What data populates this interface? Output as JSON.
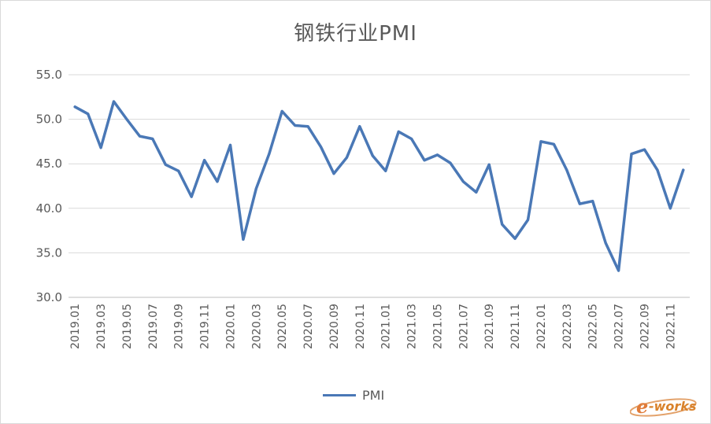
{
  "chart_data": {
    "type": "line",
    "title": "钢铁行业PMI",
    "xlabel": "",
    "ylabel": "",
    "ylim": [
      30,
      55
    ],
    "yticks": [
      "30.0",
      "35.0",
      "40.0",
      "45.0",
      "50.0",
      "55.0"
    ],
    "x": [
      "2019.01",
      "2019.02",
      "2019.03",
      "2019.04",
      "2019.05",
      "2019.06",
      "2019.07",
      "2019.08",
      "2019.09",
      "2019.10",
      "2019.11",
      "2019.12",
      "2020.01",
      "2020.02",
      "2020.03",
      "2020.04",
      "2020.05",
      "2020.06",
      "2020.07",
      "2020.08",
      "2020.09",
      "2020.10",
      "2020.11",
      "2020.12",
      "2021.01",
      "2021.02",
      "2021.03",
      "2021.04",
      "2021.05",
      "2021.06",
      "2021.07",
      "2021.08",
      "2021.09",
      "2021.10",
      "2021.11",
      "2021.12",
      "2022.01",
      "2022.02",
      "2022.03",
      "2022.04",
      "2022.05",
      "2022.06",
      "2022.07",
      "2022.08",
      "2022.09",
      "2022.10",
      "2022.11",
      "2022.12"
    ],
    "xtick_labels": [
      "2019.01",
      "2019.03",
      "2019.05",
      "2019.07",
      "2019.09",
      "2019.11",
      "2020.01",
      "2020.03",
      "2020.05",
      "2020.07",
      "2020.09",
      "2020.11",
      "2021.01",
      "2021.03",
      "2021.05",
      "2021.07",
      "2021.09",
      "2021.11",
      "2022.01",
      "2022.03",
      "2022.05",
      "2022.07",
      "2022.09",
      "2022.11"
    ],
    "series": [
      {
        "name": "PMI",
        "color": "#4a78b6",
        "values": [
          51.4,
          50.6,
          46.8,
          52.0,
          50.0,
          48.1,
          47.8,
          44.9,
          44.2,
          41.3,
          45.4,
          43.0,
          47.1,
          36.5,
          42.2,
          46.1,
          50.9,
          49.3,
          49.2,
          46.9,
          43.9,
          45.7,
          49.2,
          45.9,
          44.2,
          48.6,
          47.8,
          45.4,
          46.0,
          45.1,
          43.0,
          41.8,
          44.9,
          38.2,
          36.6,
          38.7,
          47.5,
          47.2,
          44.3,
          40.5,
          40.8,
          36.1,
          33.0,
          46.1,
          46.6,
          44.3,
          40.0,
          44.3
        ]
      }
    ],
    "grid": true,
    "legend_position": "bottom"
  },
  "legend": {
    "label": "PMI"
  },
  "watermark": {
    "text": "e-works"
  }
}
